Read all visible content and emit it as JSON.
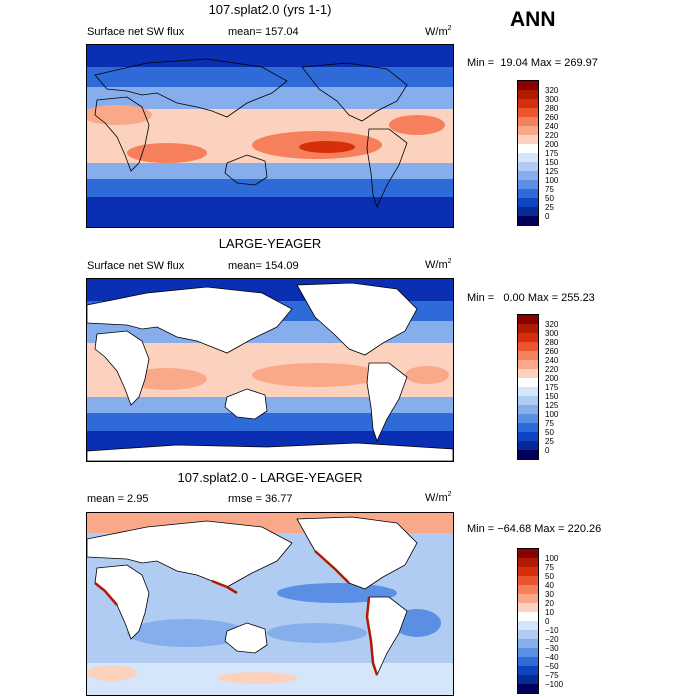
{
  "season": "ANN",
  "units": "W/m",
  "units_exp": "2",
  "panels": [
    {
      "title": "107.splat2.0 (yrs 1-1)",
      "left_label": "Surface net SW flux",
      "stat_label": "mean= 157.04",
      "minmax": "Min =  19.04 Max = 269.97"
    },
    {
      "title": "LARGE-YEAGER",
      "left_label": "Surface net SW flux",
      "stat_label": "mean= 154.09",
      "minmax": "Min =   0.00 Max = 255.23"
    },
    {
      "title": "107.splat2.0 - LARGE-YEAGER",
      "left_label": "mean =    2.95",
      "stat_label": "rmse =  36.77",
      "minmax": "Min = −64.68 Max = 220.26"
    }
  ],
  "colorbars": [
    {
      "ticks": [
        "320",
        "300",
        "280",
        "260",
        "240",
        "220",
        "200",
        "175",
        "150",
        "125",
        "100",
        "75",
        "50",
        "25",
        "0"
      ],
      "colors": [
        "#8b0000",
        "#b01a00",
        "#d62f0b",
        "#ea5530",
        "#f5805b",
        "#f9a88a",
        "#fcd2bf",
        "#ffffff",
        "#d6e6fa",
        "#b0ccf3",
        "#86aeec",
        "#5a8fe4",
        "#2f6ad9",
        "#0f43c2",
        "#062a96",
        "#00005a"
      ]
    },
    {
      "ticks": [
        "320",
        "300",
        "280",
        "260",
        "240",
        "220",
        "200",
        "175",
        "150",
        "125",
        "100",
        "75",
        "50",
        "25",
        "0"
      ],
      "colors": [
        "#8b0000",
        "#b01a00",
        "#d62f0b",
        "#ea5530",
        "#f5805b",
        "#f9a88a",
        "#fcd2bf",
        "#ffffff",
        "#d6e6fa",
        "#b0ccf3",
        "#86aeec",
        "#5a8fe4",
        "#2f6ad9",
        "#0f43c2",
        "#062a96",
        "#00005a"
      ]
    },
    {
      "ticks": [
        "100",
        "75",
        "50",
        "40",
        "30",
        "20",
        "10",
        "0",
        "−10",
        "−20",
        "−30",
        "−40",
        "−50",
        "−75",
        "−100"
      ],
      "colors": [
        "#8b0000",
        "#b01a00",
        "#d62f0b",
        "#ea5530",
        "#f5805b",
        "#f9a88a",
        "#fcd2bf",
        "#ffffff",
        "#d6e6fa",
        "#b0ccf3",
        "#86aeec",
        "#5a8fe4",
        "#2f6ad9",
        "#0f43c2",
        "#062a96",
        "#00005a"
      ]
    }
  ],
  "map_colors": {
    "deep_blue": "#0b2fb3",
    "mid_blue": "#2f6ad9",
    "light_blue": "#86aeec",
    "pale_blue": "#d6e6fa",
    "pale_red": "#fcd2bf",
    "salmon": "#f5805b",
    "red": "#d62f0b",
    "land": "#ffffff"
  }
}
